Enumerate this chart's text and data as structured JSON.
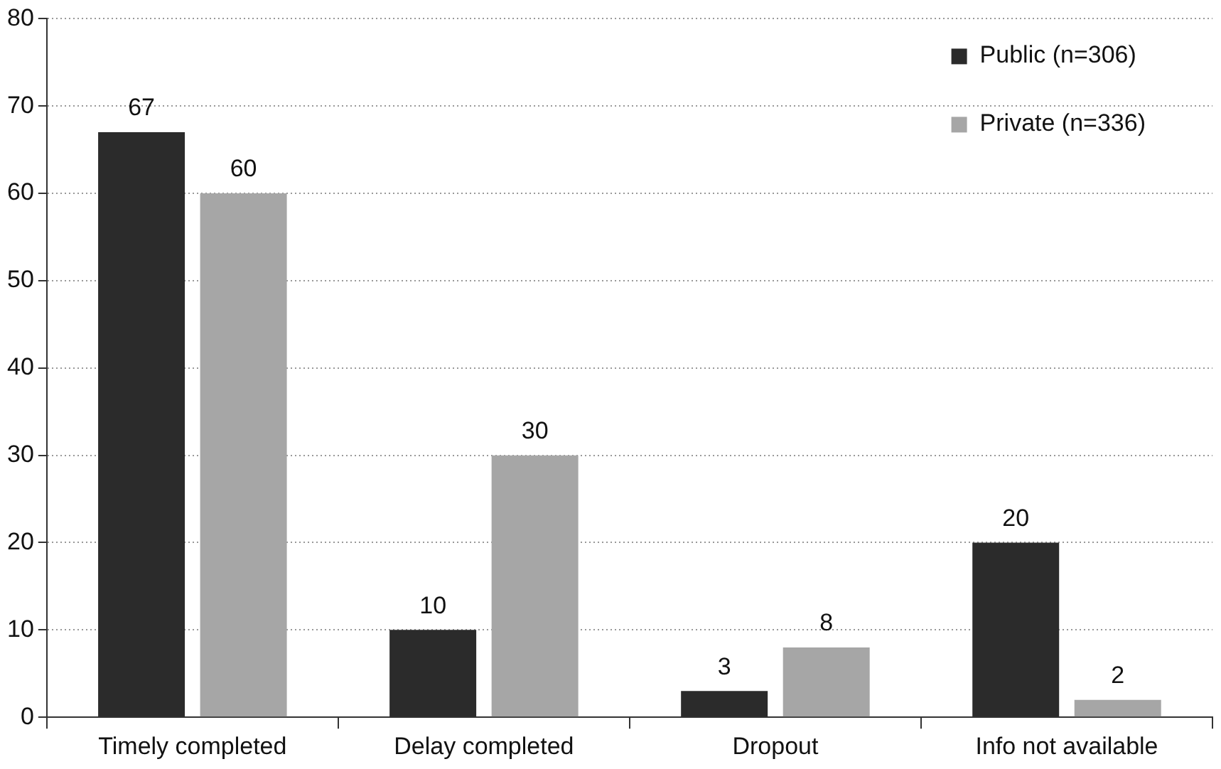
{
  "chart_data": {
    "type": "bar",
    "categories": [
      "Timely completed",
      "Delay completed",
      "Dropout",
      "Info not available"
    ],
    "series": [
      {
        "name": "Public (n=306)",
        "color": "#2b2b2b",
        "values": [
          67,
          10,
          3,
          20
        ]
      },
      {
        "name": "Private (n=336)",
        "color": "#a6a6a6",
        "values": [
          60,
          30,
          8,
          2
        ]
      }
    ],
    "ylim": [
      0,
      80
    ],
    "yticks": [
      0,
      10,
      20,
      30,
      40,
      50,
      60,
      70,
      80
    ],
    "grid": "y",
    "legend": "top right",
    "data_labels": true
  }
}
